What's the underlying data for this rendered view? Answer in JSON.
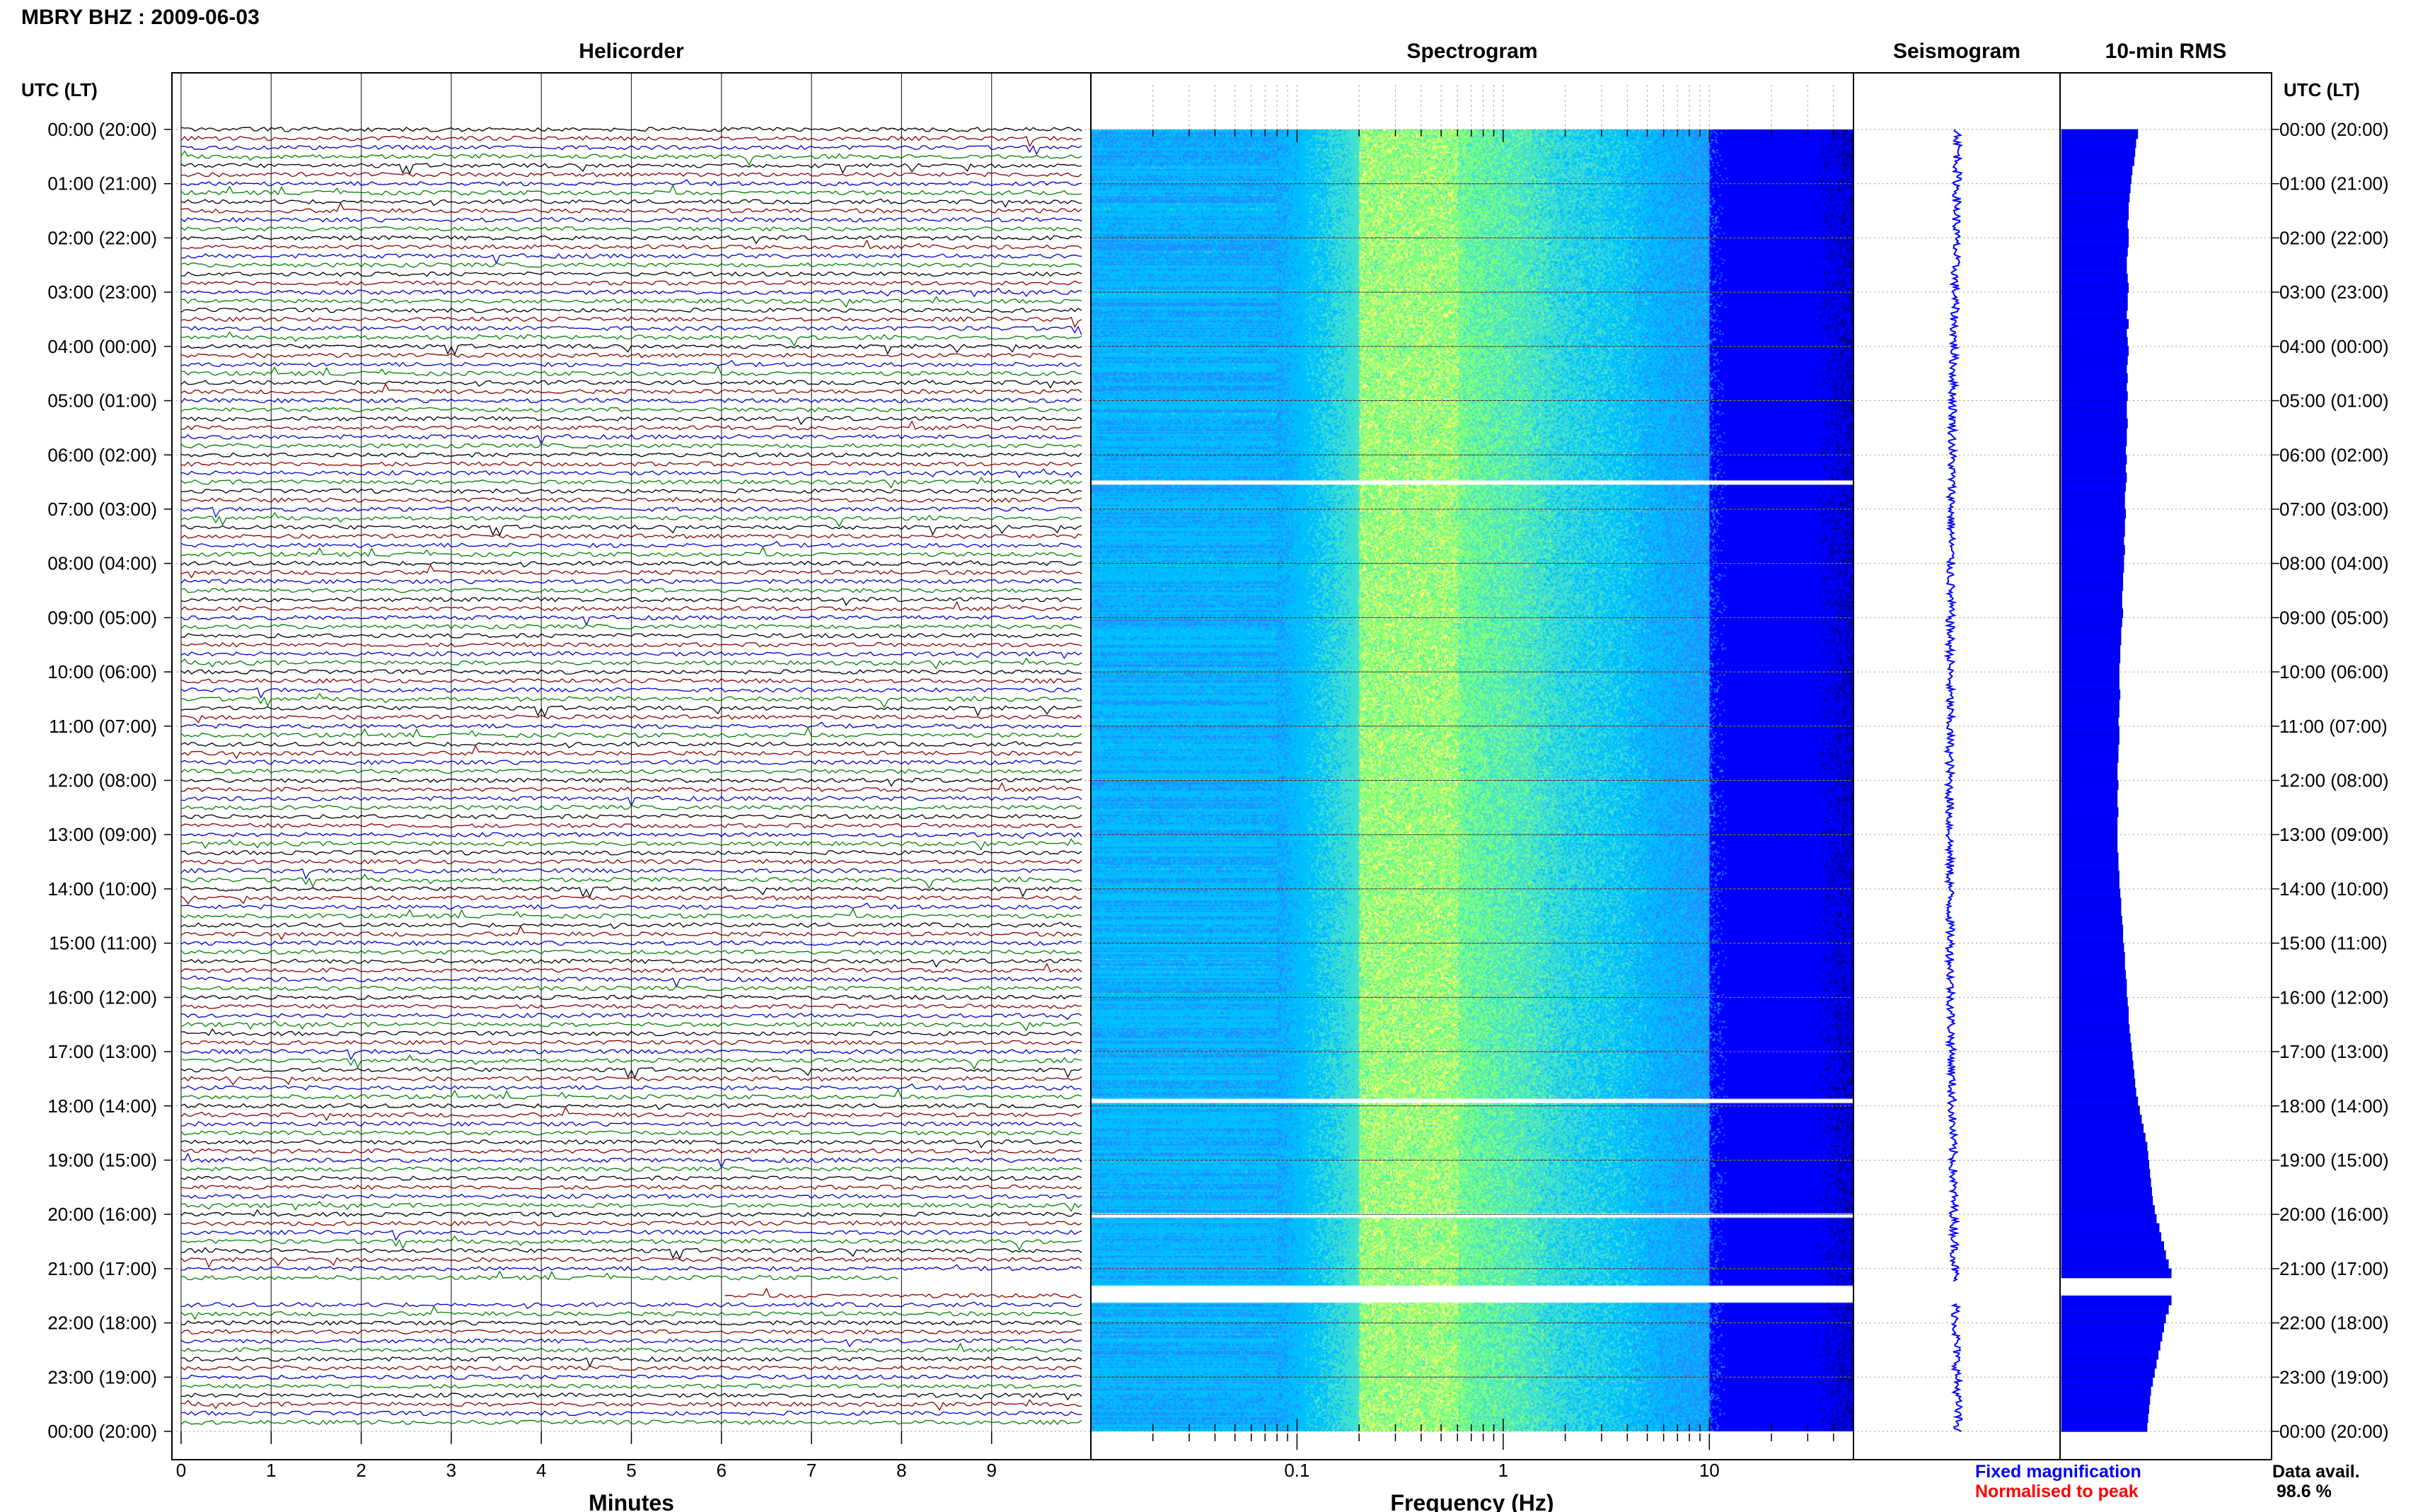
{
  "title": "MBRY BHZ : 2009-06-03",
  "chart_data": [
    {
      "type": "line",
      "panel": "helicorder",
      "title": "Helicorder",
      "xlabel": "Minutes",
      "ylabel": "UTC (LT)",
      "xlim": [
        0,
        10
      ],
      "x_ticks": [
        0,
        1,
        2,
        3,
        4,
        5,
        6,
        7,
        8,
        9
      ],
      "y_tick_labels": [
        "00:00 (20:00)",
        "01:00 (21:00)",
        "02:00 (22:00)",
        "03:00 (23:00)",
        "04:00 (00:00)",
        "05:00 (01:00)",
        "06:00 (02:00)",
        "07:00 (03:00)",
        "08:00 (04:00)",
        "09:00 (05:00)",
        "10:00 (06:00)",
        "11:00 (07:00)",
        "12:00 (08:00)",
        "13:00 (09:00)",
        "14:00 (10:00)",
        "15:00 (11:00)",
        "16:00 (12:00)",
        "17:00 (13:00)",
        "18:00 (14:00)",
        "19:00 (15:00)",
        "20:00 (16:00)",
        "21:00 (17:00)",
        "22:00 (18:00)",
        "23:00 (19:00)",
        "00:00 (20:00)"
      ],
      "trace_colors": [
        "#000000",
        "#8b0000",
        "#0000cd",
        "#008000"
      ],
      "traces_per_hour": 6,
      "data_gap_hours": [
        21.3,
        21.6
      ]
    },
    {
      "type": "heatmap",
      "panel": "spectrogram",
      "title": "Spectrogram",
      "xlabel": "Frequency (Hz)",
      "x_scale": "log",
      "xlim": [
        0.01,
        50
      ],
      "x_tick_labels": [
        "0.1",
        "1",
        "10"
      ],
      "x_tick_values": [
        0.1,
        1,
        10
      ],
      "peak_band_hz": [
        0.2,
        0.6
      ],
      "colors": [
        "#00008b",
        "#0000ff",
        "#1e90ff",
        "#00bfff",
        "#40e0d0",
        "#7fff7f",
        "#ffff66"
      ],
      "white_gap_hours": [
        6.5,
        17.9,
        20.0,
        21.3,
        21.6
      ]
    },
    {
      "type": "line",
      "panel": "seismogram",
      "title": "Seismogram",
      "color": "#0000ff"
    },
    {
      "type": "bar",
      "panel": "rms",
      "title": "10-min RMS",
      "color": "#0000ff",
      "values": [
        0.82,
        0.8,
        0.79,
        0.78,
        0.76,
        0.75,
        0.74,
        0.73,
        0.72,
        0.72,
        0.71,
        0.72,
        0.72,
        0.71,
        0.7,
        0.7,
        0.71,
        0.72,
        0.71,
        0.71,
        0.7,
        0.72,
        0.7,
        0.71,
        0.72,
        0.71,
        0.7,
        0.71,
        0.7,
        0.71,
        0.7,
        0.7,
        0.71,
        0.7,
        0.7,
        0.69,
        0.7,
        0.69,
        0.7,
        0.69,
        0.68,
        0.68,
        0.69,
        0.68,
        0.68,
        0.67,
        0.68,
        0.67,
        0.67,
        0.66,
        0.66,
        0.65,
        0.65,
        0.66,
        0.65,
        0.64,
        0.64,
        0.63,
        0.63,
        0.62,
        0.62,
        0.62,
        0.63,
        0.62,
        0.62,
        0.61,
        0.62,
        0.62,
        0.61,
        0.61,
        0.6,
        0.6,
        0.61,
        0.6,
        0.6,
        0.61,
        0.6,
        0.6,
        0.6,
        0.6,
        0.61,
        0.61,
        0.62,
        0.62,
        0.63,
        0.64,
        0.64,
        0.65,
        0.66,
        0.66,
        0.67,
        0.68,
        0.68,
        0.69,
        0.7,
        0.7,
        0.71,
        0.72,
        0.72,
        0.73,
        0.74,
        0.75,
        0.76,
        0.77,
        0.78,
        0.79,
        0.8,
        0.82,
        0.84,
        0.86,
        0.88,
        0.9,
        0.92,
        0.93,
        0.94,
        0.95,
        0.96,
        0.97,
        0.98,
        1.0,
        1.02,
        1.05,
        1.07,
        1.1,
        1.12,
        1.15,
        1.18,
        0.0,
        0.0,
        1.18,
        1.15,
        1.12,
        1.1,
        1.08,
        1.06,
        1.04,
        1.02,
        1.0,
        0.98,
        0.96,
        0.95,
        0.94,
        0.93,
        0.92
      ]
    }
  ],
  "time_axis_label": "UTC (LT)",
  "legend": {
    "fixed": "Fixed magnification",
    "fixed_color": "#0000ff",
    "normalised": "Normalised to peak",
    "normalised_color": "#ff0000"
  },
  "availability": {
    "label": "Data avail.",
    "value": "98.6 %"
  }
}
